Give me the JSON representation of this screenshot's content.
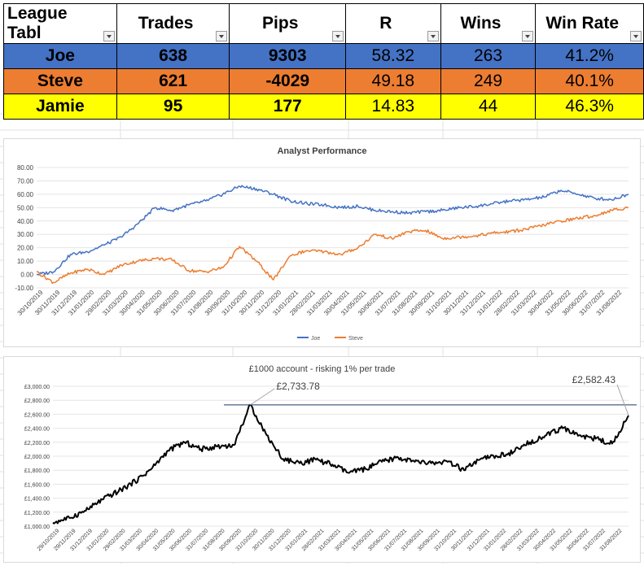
{
  "table": {
    "headers": [
      "League Tabl",
      "Trades",
      "Pips",
      "R",
      "Wins",
      "Win Rate"
    ],
    "rows": [
      {
        "name": "Joe",
        "trades": "638",
        "pips": "9303",
        "r": "58.32",
        "wins": "263",
        "win_rate": "41.2%",
        "color": "#4472c4"
      },
      {
        "name": "Steve",
        "trades": "621",
        "pips": "-4029",
        "r": "49.18",
        "wins": "249",
        "win_rate": "40.1%",
        "color": "#ed7d31"
      },
      {
        "name": "Jamie",
        "trades": "95",
        "pips": "177",
        "r": "14.83",
        "wins": "44",
        "win_rate": "46.3%",
        "color": "#ffff00"
      }
    ],
    "sorted_column": "R"
  },
  "chart_data": [
    {
      "type": "line",
      "title": "Analyst Performance",
      "ylim": [
        -10,
        80
      ],
      "yticks": [
        "80.00",
        "70.00",
        "60.00",
        "50.00",
        "40.00",
        "30.00",
        "20.00",
        "10.00",
        "0.00",
        "-10.00"
      ],
      "xticks": [
        "30/10/2019",
        "30/11/2019",
        "31/12/2019",
        "31/01/2020",
        "29/02/2020",
        "31/03/2020",
        "30/04/2020",
        "31/05/2020",
        "30/06/2020",
        "31/07/2020",
        "31/08/2020",
        "30/09/2020",
        "31/10/2020",
        "30/11/2020",
        "31/12/2020",
        "31/01/2021",
        "28/02/2021",
        "31/03/2021",
        "30/04/2021",
        "31/05/2021",
        "30/06/2021",
        "31/07/2021",
        "31/08/2021",
        "30/09/2021",
        "31/10/2021",
        "30/11/2021",
        "31/12/2021",
        "31/01/2022",
        "28/02/2022",
        "31/03/2022",
        "30/04/2022",
        "31/05/2022",
        "30/06/2022",
        "31/07/2022",
        "31/08/2022"
      ],
      "grid": true,
      "legend": "bottom",
      "series": [
        {
          "name": "Joe",
          "color": "#4472c4",
          "values": [
            0,
            2,
            15,
            17,
            22,
            28,
            38,
            50,
            48,
            52,
            55,
            60,
            66,
            64,
            60,
            55,
            53,
            52,
            50,
            51,
            48,
            47,
            46,
            47,
            48,
            50,
            51,
            53,
            55,
            56,
            58,
            63,
            60,
            57,
            56,
            60
          ]
        },
        {
          "name": "Steve",
          "color": "#ed7d31",
          "values": [
            2,
            -6,
            1,
            4,
            0,
            7,
            10,
            12,
            11,
            3,
            2,
            5,
            21,
            10,
            -4,
            14,
            18,
            17,
            15,
            20,
            30,
            27,
            32,
            33,
            27,
            28,
            29,
            31,
            32,
            34,
            37,
            40,
            42,
            44,
            48,
            50
          ]
        }
      ]
    },
    {
      "type": "line",
      "title": "£1000 account - risking 1% per trade",
      "ylim": [
        1000,
        3000
      ],
      "yticks": [
        "£3,000.00",
        "£2,800.00",
        "£2,600.00",
        "£2,400.00",
        "£2,200.00",
        "£2,000.00",
        "£1,800.00",
        "£1,600.00",
        "£1,400.00",
        "£1,200.00",
        "£1,000.00"
      ],
      "xticks": [
        "29/10/2019",
        "29/11/2019",
        "31/12/2019",
        "31/01/2020",
        "29/02/2020",
        "31/03/2020",
        "30/04/2020",
        "31/05/2020",
        "30/06/2020",
        "31/07/2020",
        "31/08/2020",
        "30/09/2020",
        "31/10/2020",
        "30/11/2020",
        "31/12/2020",
        "31/01/2021",
        "28/02/2021",
        "31/03/2021",
        "30/04/2021",
        "31/05/2021",
        "30/06/2021",
        "31/07/2021",
        "31/08/2021",
        "30/09/2021",
        "31/10/2021",
        "30/11/2021",
        "31/12/2021",
        "31/01/2022",
        "28/02/2022",
        "31/03/2022",
        "30/04/2022",
        "31/05/2022",
        "30/06/2022",
        "31/07/2022",
        "31/08/2022"
      ],
      "grid": true,
      "series": [
        {
          "color": "#000000",
          "values": [
            1050,
            1120,
            1220,
            1380,
            1500,
            1640,
            1820,
            2080,
            2200,
            2100,
            2140,
            2160,
            2733.78,
            2300,
            1960,
            1900,
            1950,
            1880,
            1760,
            1820,
            1920,
            1980,
            1920,
            1900,
            1920,
            1800,
            1960,
            2000,
            2060,
            2200,
            2300,
            2400,
            2300,
            2250,
            2180,
            2582.43
          ]
        }
      ],
      "annotations": [
        {
          "label": "£2,733.78",
          "value": 2733.78
        },
        {
          "label": "£2,582.43",
          "value": 2582.43
        }
      ]
    }
  ]
}
